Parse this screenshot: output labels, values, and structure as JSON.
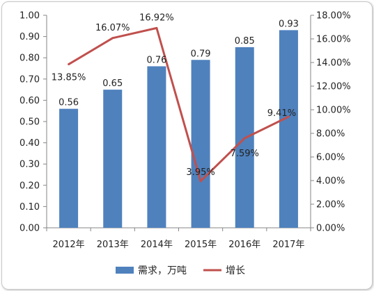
{
  "chart_data": {
    "type": "bar+line",
    "categories": [
      "2012年",
      "2013年",
      "2014年",
      "2015年",
      "2016年",
      "2017年"
    ],
    "series": [
      {
        "name": "需求，万吨",
        "type": "bar",
        "axis": "left",
        "values": [
          0.56,
          0.65,
          0.76,
          0.79,
          0.85,
          0.93
        ],
        "labels": [
          "0.56",
          "0.65",
          "0.76",
          "0.79",
          "0.85",
          "0.93"
        ],
        "color": "#4f81bd"
      },
      {
        "name": "增长",
        "type": "line",
        "axis": "right",
        "values": [
          13.85,
          16.07,
          16.92,
          3.95,
          7.59,
          9.41
        ],
        "labels": [
          "13.85%",
          "16.07%",
          "16.92%",
          "3.95%",
          "7.59%",
          "9.41%"
        ],
        "color": "#c0504d"
      }
    ],
    "y_left": {
      "min": 0,
      "max": 1.0,
      "step": 0.1,
      "ticks": [
        "0.00",
        "0.10",
        "0.20",
        "0.30",
        "0.40",
        "0.50",
        "0.60",
        "0.70",
        "0.80",
        "0.90",
        "1.00"
      ]
    },
    "y_right": {
      "min": 0,
      "max": 18,
      "step": 2,
      "ticks": [
        "0.00%",
        "2.00%",
        "4.00%",
        "6.00%",
        "8.00%",
        "10.00%",
        "12.00%",
        "14.00%",
        "16.00%",
        "18.00%"
      ]
    },
    "grid": false,
    "legend_position": "bottom"
  }
}
